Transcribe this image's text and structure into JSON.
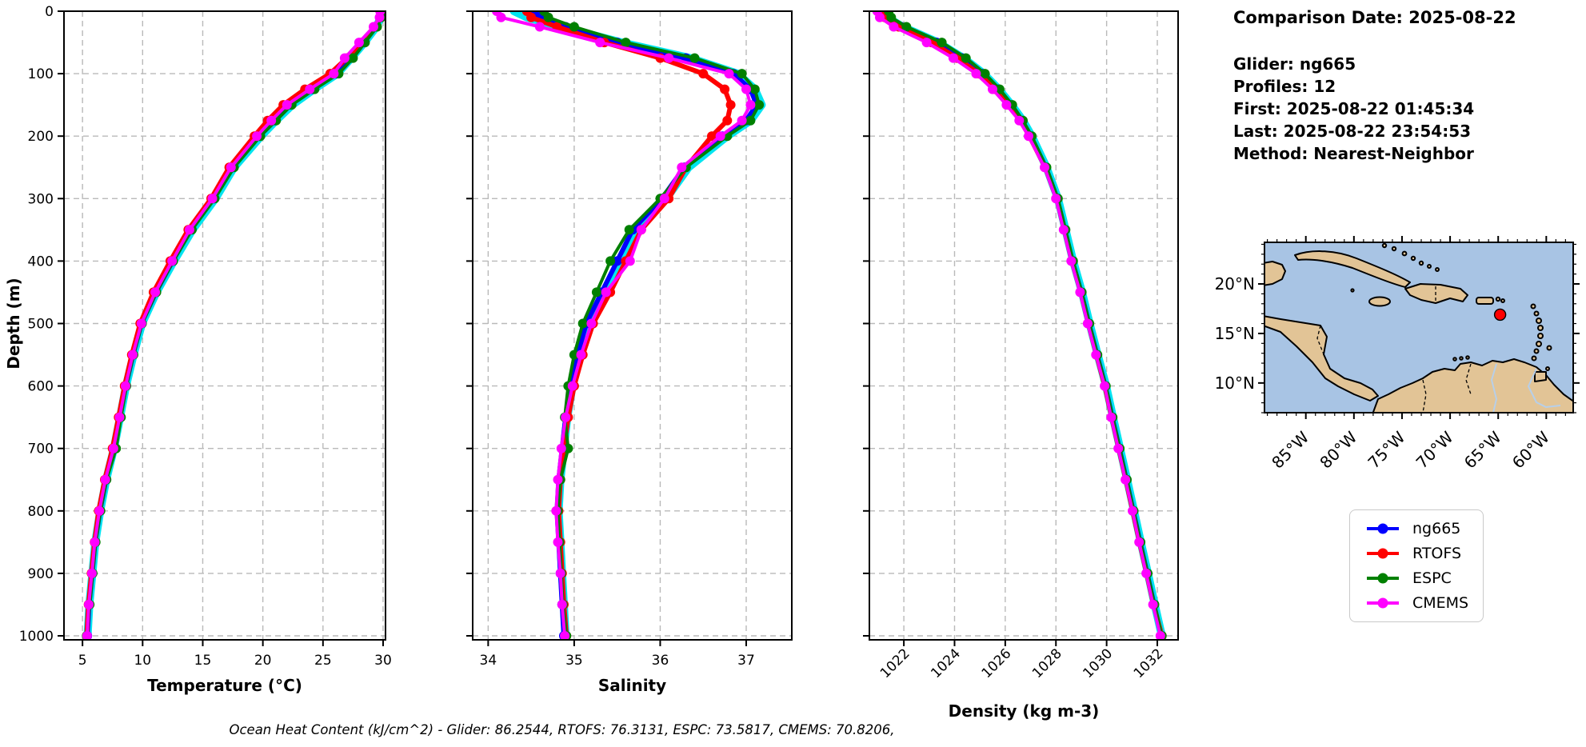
{
  "info": {
    "comparison_date": "Comparison Date: 2025-08-22",
    "lines": [
      "Glider: ng665",
      "Profiles: 12",
      "First: 2025-08-22 01:45:34",
      "Last: 2025-08-22 23:54:53",
      "Method: Nearest-Neighbor"
    ]
  },
  "caption": "Ocean Heat Content (kJ/cm^2) - Glider: 86.2544,  RTOFS: 76.3131,  ESPC: 73.5817,  CMEMS: 70.8206,",
  "legend": {
    "items": [
      {
        "label": "ng665",
        "color": "#0000ff"
      },
      {
        "label": "RTOFS",
        "color": "#ff0000"
      },
      {
        "label": "ESPC",
        "color": "#008000"
      },
      {
        "label": "CMEMS",
        "color": "#ff00ff"
      }
    ]
  },
  "depth_axis": {
    "label": "Depth (m)",
    "ticks": [
      0,
      100,
      200,
      300,
      400,
      500,
      600,
      700,
      800,
      900,
      1000
    ],
    "range": [
      0,
      1000
    ]
  },
  "chart_data": [
    {
      "type": "line",
      "name": "temperature",
      "xlabel": "Temperature (°C)",
      "ylabel": "Depth (m)",
      "xlim": [
        3.46,
        30.2
      ],
      "ylim": [
        0,
        1000
      ],
      "xticks": [
        5,
        10,
        15,
        20,
        25,
        30
      ],
      "x_tick_rotation": 0,
      "grid": true,
      "depths": [
        0,
        10,
        25,
        50,
        75,
        100,
        125,
        150,
        175,
        200,
        250,
        300,
        350,
        400,
        450,
        500,
        550,
        600,
        650,
        700,
        750,
        800,
        850,
        900,
        950,
        1000
      ],
      "series": [
        {
          "name": "glider-raw",
          "color": "#00e5f0",
          "width": 10,
          "markers": false,
          "in_legend": false,
          "values": [
            29.85,
            29.8,
            29.45,
            28.45,
            27.35,
            26.2,
            24.25,
            22.45,
            21.1,
            19.85,
            17.6,
            16.05,
            14.15,
            12.6,
            11.15,
            9.95,
            9.25,
            8.62,
            8.12,
            7.62,
            6.97,
            6.47,
            6.07,
            5.82,
            5.57,
            5.42
          ]
        },
        {
          "name": "ng665",
          "color": "#0000ff",
          "width": 6,
          "markers": true,
          "in_legend": true,
          "values": [
            29.85,
            29.8,
            29.4,
            28.4,
            27.3,
            26.1,
            24.1,
            22.3,
            21.0,
            19.7,
            17.5,
            15.9,
            14.0,
            12.5,
            11.1,
            9.9,
            9.2,
            8.6,
            8.1,
            7.6,
            6.95,
            6.45,
            6.05,
            5.8,
            5.55,
            5.4
          ]
        },
        {
          "name": "RTOFS",
          "color": "#ff0000",
          "width": 6,
          "markers": true,
          "in_legend": true,
          "values": [
            29.8,
            29.75,
            29.3,
            28.2,
            27.0,
            25.6,
            23.5,
            21.7,
            20.4,
            19.3,
            17.2,
            15.7,
            13.8,
            12.3,
            10.9,
            9.8,
            9.1,
            8.5,
            8.0,
            7.5,
            6.85,
            6.35,
            6.0,
            5.75,
            5.5,
            5.35
          ]
        },
        {
          "name": "ESPC",
          "color": "#008000",
          "width": 4,
          "markers": true,
          "in_legend": true,
          "values": [
            29.9,
            29.85,
            29.5,
            28.5,
            27.5,
            26.3,
            24.3,
            22.4,
            21.1,
            19.8,
            17.6,
            16.0,
            14.1,
            12.55,
            11.15,
            9.95,
            9.25,
            8.65,
            8.2,
            7.8,
            7.0,
            6.5,
            6.1,
            5.85,
            5.6,
            5.35
          ]
        },
        {
          "name": "CMEMS",
          "color": "#ff00ff",
          "width": 4,
          "markers": true,
          "in_legend": true,
          "values": [
            29.75,
            29.7,
            29.2,
            28.0,
            26.8,
            25.9,
            23.9,
            22.0,
            20.7,
            19.5,
            17.35,
            15.8,
            13.9,
            12.45,
            11.05,
            9.9,
            9.18,
            8.58,
            8.08,
            7.58,
            6.9,
            6.4,
            6.02,
            5.78,
            5.52,
            5.38
          ]
        }
      ]
    },
    {
      "type": "line",
      "name": "salinity",
      "xlabel": "Salinity",
      "ylabel": "Depth (m)",
      "xlim": [
        33.82,
        37.53
      ],
      "ylim": [
        0,
        1000
      ],
      "xticks": [
        34,
        35,
        36,
        37
      ],
      "x_tick_rotation": 0,
      "grid": true,
      "depths": [
        0,
        10,
        25,
        50,
        75,
        100,
        125,
        150,
        175,
        200,
        250,
        300,
        350,
        400,
        450,
        500,
        550,
        600,
        650,
        700,
        750,
        800,
        850,
        900,
        950,
        1000
      ],
      "series": [
        {
          "name": "glider-raw",
          "color": "#00e5f0",
          "width": 10,
          "markers": false,
          "in_legend": false,
          "values": [
            34.3,
            34.45,
            34.85,
            35.55,
            36.35,
            36.9,
            37.1,
            37.18,
            37.05,
            36.78,
            36.33,
            36.07,
            35.72,
            35.54,
            35.35,
            35.17,
            35.06,
            34.98,
            34.92,
            34.88,
            34.84,
            34.82,
            34.84,
            34.86,
            34.88,
            34.9
          ]
        },
        {
          "name": "ng665",
          "color": "#0000ff",
          "width": 6,
          "markers": true,
          "in_legend": true,
          "values": [
            34.55,
            34.6,
            34.9,
            35.5,
            36.3,
            36.85,
            37.05,
            37.12,
            37.0,
            36.72,
            36.28,
            36.02,
            35.68,
            35.5,
            35.32,
            35.14,
            35.04,
            34.96,
            34.9,
            34.86,
            34.82,
            34.8,
            34.82,
            34.84,
            34.86,
            34.88
          ]
        },
        {
          "name": "RTOFS",
          "color": "#ff0000",
          "width": 6,
          "markers": true,
          "in_legend": true,
          "values": [
            34.45,
            34.5,
            34.8,
            35.35,
            36.0,
            36.5,
            36.75,
            36.82,
            36.78,
            36.6,
            36.3,
            36.1,
            35.78,
            35.6,
            35.42,
            35.22,
            35.1,
            35.0,
            34.93,
            34.88,
            34.84,
            34.82,
            34.84,
            34.86,
            34.88,
            34.91
          ]
        },
        {
          "name": "ESPC",
          "color": "#008000",
          "width": 4,
          "markers": true,
          "in_legend": true,
          "values": [
            34.65,
            34.7,
            35.0,
            35.6,
            36.4,
            36.95,
            37.1,
            37.15,
            37.05,
            36.78,
            36.3,
            36.0,
            35.64,
            35.42,
            35.26,
            35.1,
            35.0,
            34.93,
            34.89,
            34.93,
            34.84,
            34.81,
            34.83,
            34.85,
            34.87,
            34.91
          ]
        },
        {
          "name": "CMEMS",
          "color": "#ff00ff",
          "width": 4,
          "markers": true,
          "in_legend": true,
          "values": [
            34.1,
            34.15,
            34.6,
            35.3,
            36.1,
            36.8,
            37.0,
            37.05,
            36.95,
            36.7,
            36.25,
            36.05,
            35.78,
            35.65,
            35.37,
            35.2,
            35.08,
            34.98,
            34.9,
            34.85,
            34.81,
            34.79,
            34.81,
            34.84,
            34.86,
            34.89
          ]
        }
      ]
    },
    {
      "type": "line",
      "name": "density",
      "xlabel": "Density (kg m-3)",
      "ylabel": "Depth (m)",
      "xlim": [
        1020.64,
        1032.82
      ],
      "ylim": [
        0,
        1000
      ],
      "xticks": [
        1022,
        1024,
        1026,
        1028,
        1030,
        1032
      ],
      "xtick_labels": [
        "1022",
        "1024",
        "1026",
        "1028",
        "1030",
        "1032"
      ],
      "x_tick_rotation": 45,
      "grid": true,
      "depths": [
        0,
        10,
        25,
        50,
        75,
        100,
        125,
        150,
        175,
        200,
        250,
        300,
        350,
        400,
        450,
        500,
        550,
        600,
        650,
        700,
        750,
        800,
        850,
        900,
        950,
        1000
      ],
      "series": [
        {
          "name": "glider-raw",
          "color": "#00e5f0",
          "width": 10,
          "markers": false,
          "in_legend": false,
          "values": [
            1021.25,
            1021.35,
            1021.95,
            1023.35,
            1024.35,
            1025.15,
            1025.75,
            1026.25,
            1026.7,
            1027.05,
            1027.63,
            1028.08,
            1028.38,
            1028.68,
            1029.03,
            1029.33,
            1029.65,
            1029.98,
            1030.25,
            1030.53,
            1030.81,
            1031.08,
            1031.35,
            1031.63,
            1031.9,
            1032.18
          ]
        },
        {
          "name": "ng665",
          "color": "#0000ff",
          "width": 6,
          "markers": true,
          "in_legend": true,
          "values": [
            1021.2,
            1021.3,
            1021.9,
            1023.3,
            1024.3,
            1025.1,
            1025.7,
            1026.2,
            1026.65,
            1027.0,
            1027.6,
            1028.05,
            1028.35,
            1028.65,
            1029.0,
            1029.3,
            1029.62,
            1029.95,
            1030.22,
            1030.5,
            1030.78,
            1031.05,
            1031.32,
            1031.6,
            1031.87,
            1032.15
          ]
        },
        {
          "name": "RTOFS",
          "color": "#ff0000",
          "width": 6,
          "markers": true,
          "in_legend": true,
          "values": [
            1021.15,
            1021.25,
            1021.8,
            1023.1,
            1024.1,
            1024.95,
            1025.6,
            1026.1,
            1026.6,
            1026.95,
            1027.58,
            1028.03,
            1028.33,
            1028.63,
            1028.98,
            1029.28,
            1029.6,
            1029.93,
            1030.2,
            1030.48,
            1030.76,
            1031.03,
            1031.3,
            1031.58,
            1031.85,
            1032.18
          ]
        },
        {
          "name": "ESPC",
          "color": "#008000",
          "width": 4,
          "markers": true,
          "in_legend": true,
          "values": [
            1021.4,
            1021.5,
            1022.1,
            1023.5,
            1024.45,
            1025.2,
            1025.78,
            1026.28,
            1026.7,
            1027.05,
            1027.63,
            1028.08,
            1028.38,
            1028.68,
            1029.02,
            1029.32,
            1029.64,
            1029.97,
            1030.24,
            1030.52,
            1030.8,
            1031.07,
            1031.34,
            1031.62,
            1031.89,
            1032.18
          ]
        },
        {
          "name": "CMEMS",
          "color": "#ff00ff",
          "width": 4,
          "markers": true,
          "in_legend": true,
          "values": [
            1020.95,
            1021.05,
            1021.6,
            1022.9,
            1023.95,
            1024.85,
            1025.5,
            1026.05,
            1026.55,
            1026.92,
            1027.55,
            1028.0,
            1028.3,
            1028.6,
            1028.95,
            1029.25,
            1029.58,
            1029.92,
            1030.18,
            1030.46,
            1030.74,
            1031.02,
            1031.28,
            1031.56,
            1031.83,
            1032.12
          ]
        }
      ]
    }
  ],
  "map": {
    "extent": {
      "west": -89.3,
      "east": -57.2,
      "south": 7.0,
      "north": 24.2
    },
    "lat_ticks": [
      {
        "label": "20°N",
        "lat": 20
      },
      {
        "label": "15°N",
        "lat": 15
      },
      {
        "label": "10°N",
        "lat": 10
      }
    ],
    "lon_ticks": [
      {
        "label": "85°W",
        "lon": -85
      },
      {
        "label": "80°W",
        "lon": -80
      },
      {
        "label": "75°W",
        "lon": -75
      },
      {
        "label": "70°W",
        "lon": -70
      },
      {
        "label": "65°W",
        "lon": -65
      },
      {
        "label": "60°W",
        "lon": -60
      }
    ],
    "glider_position": {
      "lon": -64.8,
      "lat": 16.9
    },
    "ocean_color": "#a8c4e4",
    "land_color": "#e2c496",
    "marker_color": "#ff0000"
  }
}
